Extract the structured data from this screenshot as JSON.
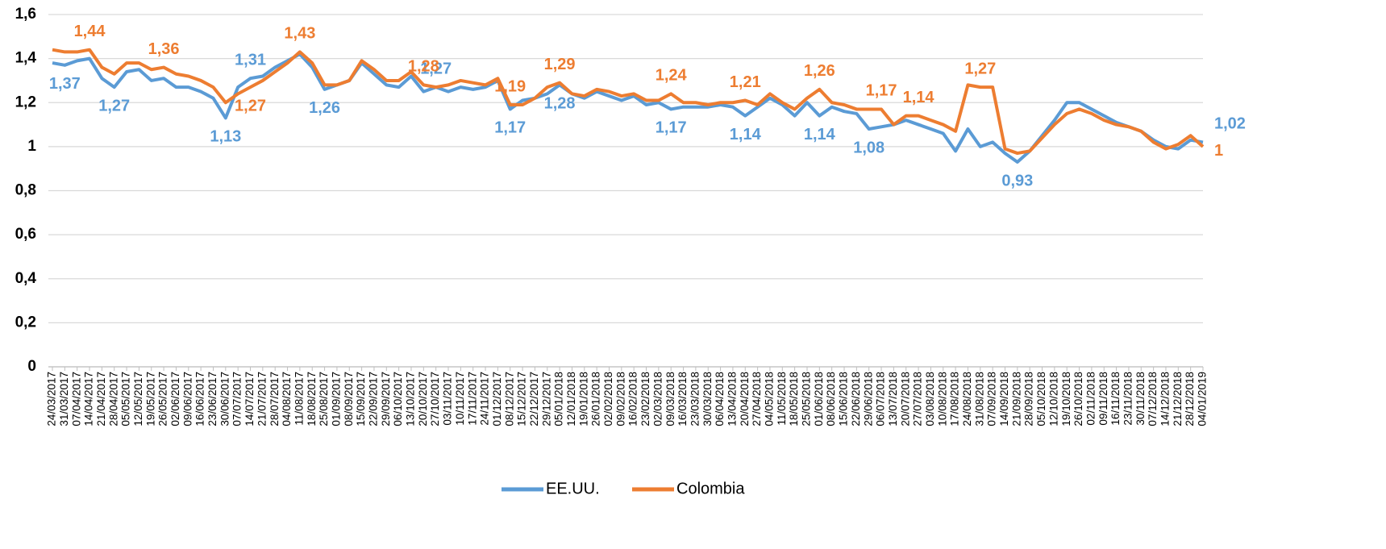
{
  "chart_data": {
    "type": "line",
    "categories": [
      "24/03/2017",
      "31/03/2017",
      "07/04/2017",
      "14/04/2017",
      "21/04/2017",
      "28/04/2017",
      "05/05/2017",
      "12/05/2017",
      "19/05/2017",
      "26/05/2017",
      "02/06/2017",
      "09/06/2017",
      "16/06/2017",
      "23/06/2017",
      "30/06/2017",
      "07/07/2017",
      "14/07/2017",
      "21/07/2017",
      "28/07/2017",
      "04/08/2017",
      "11/08/2017",
      "18/08/2017",
      "25/08/2017",
      "01/09/2017",
      "08/09/2017",
      "15/09/2017",
      "22/09/2017",
      "29/09/2017",
      "06/10/2017",
      "13/10/2017",
      "20/10/2017",
      "27/10/2017",
      "03/11/2017",
      "10/11/2017",
      "17/11/2017",
      "24/11/2017",
      "01/12/2017",
      "08/12/2017",
      "15/12/2017",
      "22/12/2017",
      "29/12/2017",
      "05/01/2018",
      "12/01/2018",
      "19/01/2018",
      "26/01/2018",
      "02/02/2018",
      "09/02/2018",
      "16/02/2018",
      "23/02/2018",
      "02/03/2018",
      "09/03/2018",
      "16/03/2018",
      "23/03/2018",
      "30/03/2018",
      "06/04/2018",
      "13/04/2018",
      "20/04/2018",
      "27/04/2018",
      "04/05/2018",
      "11/05/2018",
      "18/05/2018",
      "25/05/2018",
      "01/06/2018",
      "08/06/2018",
      "15/06/2018",
      "22/06/2018",
      "29/06/2018",
      "06/07/2018",
      "13/07/2018",
      "20/07/2018",
      "27/07/2018",
      "03/08/2018",
      "10/08/2018",
      "17/08/2018",
      "24/08/2018",
      "31/08/2018",
      "07/09/2018",
      "14/09/2018",
      "21/09/2018",
      "28/09/2018",
      "05/10/2018",
      "12/10/2018",
      "19/10/2018",
      "26/10/2018",
      "02/11/2018",
      "09/11/2018",
      "16/11/2018",
      "23/11/2018",
      "30/11/2018",
      "07/12/2018",
      "14/12/2018",
      "21/12/2018",
      "28/12/2018",
      "04/01/2019"
    ],
    "series": [
      {
        "name": "EE.UU.",
        "color": "#5b9bd5",
        "values": [
          1.38,
          1.37,
          1.39,
          1.4,
          1.31,
          1.27,
          1.34,
          1.35,
          1.3,
          1.31,
          1.27,
          1.27,
          1.25,
          1.22,
          1.13,
          1.27,
          1.31,
          1.32,
          1.36,
          1.39,
          1.42,
          1.36,
          1.26,
          1.28,
          1.3,
          1.38,
          1.33,
          1.28,
          1.27,
          1.32,
          1.25,
          1.27,
          1.25,
          1.27,
          1.26,
          1.27,
          1.3,
          1.17,
          1.21,
          1.22,
          1.24,
          1.28,
          1.24,
          1.22,
          1.25,
          1.23,
          1.21,
          1.23,
          1.19,
          1.2,
          1.17,
          1.18,
          1.18,
          1.18,
          1.19,
          1.18,
          1.14,
          1.18,
          1.22,
          1.19,
          1.14,
          1.2,
          1.14,
          1.18,
          1.16,
          1.15,
          1.08,
          1.09,
          1.1,
          1.12,
          1.1,
          1.08,
          1.06,
          0.98,
          1.08,
          1.0,
          1.02,
          0.97,
          0.93,
          0.98,
          1.05,
          1.12,
          1.2,
          1.2,
          1.17,
          1.14,
          1.11,
          1.09,
          1.07,
          1.03,
          1.0,
          0.99,
          1.03,
          1.02
        ],
        "value_labels": [
          null,
          "1,37",
          null,
          null,
          null,
          "1,27",
          null,
          null,
          null,
          null,
          null,
          null,
          null,
          null,
          "1,13",
          null,
          "1,31",
          null,
          null,
          null,
          null,
          null,
          "1,26",
          null,
          null,
          null,
          null,
          null,
          null,
          null,
          null,
          "1,27",
          null,
          null,
          null,
          null,
          null,
          "1,17",
          null,
          null,
          null,
          "1,28",
          null,
          null,
          null,
          null,
          null,
          null,
          null,
          null,
          "1,17",
          null,
          null,
          null,
          null,
          null,
          "1,14",
          null,
          null,
          null,
          null,
          null,
          "1,14",
          null,
          null,
          null,
          "1,08",
          null,
          null,
          null,
          null,
          null,
          null,
          null,
          null,
          null,
          null,
          null,
          "0,93",
          null,
          null,
          null,
          null,
          null,
          null,
          null,
          null,
          null,
          null,
          null,
          null,
          null,
          null,
          "1,02"
        ]
      },
      {
        "name": "Colombia",
        "color": "#ed7d31",
        "values": [
          1.44,
          1.43,
          1.43,
          1.44,
          1.36,
          1.33,
          1.38,
          1.38,
          1.35,
          1.36,
          1.33,
          1.32,
          1.3,
          1.27,
          1.2,
          1.24,
          1.27,
          1.3,
          1.34,
          1.38,
          1.43,
          1.38,
          1.28,
          1.28,
          1.3,
          1.39,
          1.35,
          1.3,
          1.3,
          1.34,
          1.28,
          1.27,
          1.28,
          1.3,
          1.29,
          1.28,
          1.31,
          1.19,
          1.19,
          1.22,
          1.27,
          1.29,
          1.24,
          1.23,
          1.26,
          1.25,
          1.23,
          1.24,
          1.21,
          1.21,
          1.24,
          1.2,
          1.2,
          1.19,
          1.2,
          1.2,
          1.21,
          1.19,
          1.24,
          1.2,
          1.17,
          1.22,
          1.26,
          1.2,
          1.19,
          1.17,
          1.17,
          1.17,
          1.1,
          1.14,
          1.14,
          1.12,
          1.1,
          1.07,
          1.28,
          1.27,
          1.27,
          0.99,
          0.97,
          0.98,
          1.04,
          1.1,
          1.15,
          1.17,
          1.15,
          1.12,
          1.1,
          1.09,
          1.07,
          1.02,
          0.99,
          1.01,
          1.05,
          1.0
        ],
        "value_labels": [
          null,
          null,
          null,
          "1,44",
          null,
          null,
          null,
          null,
          null,
          "1,36",
          null,
          null,
          null,
          null,
          null,
          null,
          "1,27",
          null,
          null,
          null,
          "1,43",
          null,
          null,
          null,
          null,
          null,
          null,
          null,
          null,
          null,
          "1,28",
          null,
          null,
          null,
          null,
          null,
          null,
          "1,19",
          null,
          null,
          null,
          "1,29",
          null,
          null,
          null,
          null,
          null,
          null,
          null,
          null,
          "1,24",
          null,
          null,
          null,
          null,
          null,
          "1,21",
          null,
          null,
          null,
          null,
          null,
          "1,26",
          null,
          null,
          null,
          null,
          "1,17",
          null,
          null,
          "1,14",
          null,
          null,
          null,
          null,
          "1,27",
          null,
          null,
          null,
          null,
          null,
          null,
          null,
          null,
          null,
          null,
          null,
          null,
          null,
          null,
          null,
          null,
          null,
          "1"
        ]
      }
    ],
    "ylim": [
      0,
      1.6
    ],
    "yticks": [
      0,
      {
        "value": 0.2,
        "label": "0,2"
      },
      {
        "value": 0.4,
        "label": "0,4"
      },
      {
        "value": 0.6,
        "label": "0,6"
      },
      {
        "value": 0.8,
        "label": "0,8"
      },
      1,
      {
        "value": 1.2,
        "label": "1,2"
      },
      {
        "value": 1.4,
        "label": "1,4"
      },
      {
        "value": 1.6,
        "label": "1,6"
      }
    ],
    "grid": true,
    "legend": "bottom"
  }
}
